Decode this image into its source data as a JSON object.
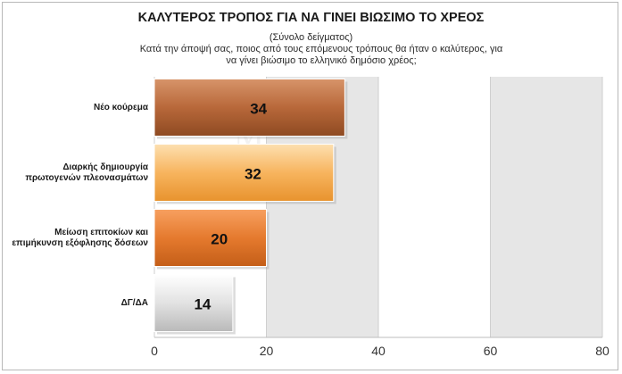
{
  "chart_data": {
    "type": "bar",
    "orientation": "horizontal",
    "title": "ΚΑΛΥΤΕΡΟΣ ΤΡΟΠΟΣ ΓΙΑ ΝΑ ΓΙΝΕΙ ΒΙΩΣΙΜΟ ΤΟ ΧΡΕΟΣ",
    "subtitle": "(Σύνολο δείγματος)",
    "question": "Κατά την άποψή σας, ποιος από τους επόμενους τρόπους θα ήταν ο καλύτερος, για να γίνει βιώσιμο το ελληνικό δημόσιο χρέος;",
    "categories": [
      "Νέο κούρεμα",
      "Διαρκής δημιουργία πρωτογενών πλεονασμάτων",
      "Μείωση επιτοκίων και επιμήκυνση εξόφλησης δόσεων",
      "ΔΓ/ΔΑ"
    ],
    "values": [
      34,
      32,
      20,
      14
    ],
    "xlim": [
      0,
      80
    ],
    "xticks": [
      0,
      20,
      40,
      60,
      80
    ],
    "bar_colors": [
      "#b8683a",
      "#f7b45e",
      "#e57a2e",
      "#d9d9d9"
    ],
    "grid": "alternating bands"
  }
}
